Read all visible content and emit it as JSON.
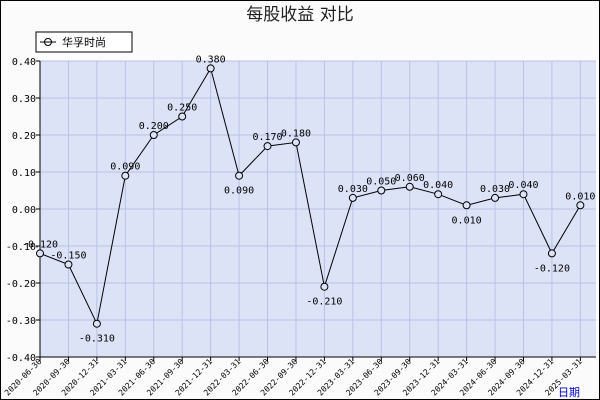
{
  "chart_data": {
    "type": "line",
    "title": "每股收益 对比",
    "xlabel": "日期",
    "ylabel": "",
    "ylim": [
      -0.4,
      0.4
    ],
    "yticks": [
      "0.40",
      "0.30",
      "0.20",
      "0.10",
      "0.00",
      "-0.10",
      "-0.20",
      "-0.30",
      "-0.40"
    ],
    "grid": true,
    "legend_position": "top-left",
    "colors": {
      "plot_bg": "#dde3f7",
      "grid": "#b8c2e6",
      "line": "#000000",
      "axis": "#000000"
    },
    "x": [
      "2020-06-30",
      "2020-09-30",
      "2020-12-31",
      "2021-03-31",
      "2021-06-30",
      "2021-09-30",
      "2021-12-31",
      "2022-03-31",
      "2022-06-30",
      "2022-09-30",
      "2022-12-31",
      "2023-03-31",
      "2023-06-30",
      "2023-09-30",
      "2023-12-31",
      "2024-03-31",
      "2024-06-30",
      "2024-09-30",
      "2024-12-31",
      "2025-03-31"
    ],
    "series": [
      {
        "name": "华孚时尚",
        "values": [
          -0.12,
          -0.15,
          -0.31,
          0.09,
          0.2,
          0.25,
          0.38,
          0.09,
          0.17,
          0.18,
          -0.21,
          0.03,
          0.05,
          0.06,
          0.04,
          0.01,
          0.03,
          0.04,
          -0.12,
          0.01
        ],
        "labels": [
          "-0.120",
          "-0.150",
          "-0.310",
          "0.090",
          "0.200",
          "0.250",
          "0.380",
          "0.090",
          "0.170",
          "0.180",
          "-0.210",
          "0.030",
          "0.050",
          "0.060",
          "0.040",
          "0.010",
          "0.030",
          "0.040",
          "-0.120",
          "0.010"
        ]
      }
    ]
  }
}
